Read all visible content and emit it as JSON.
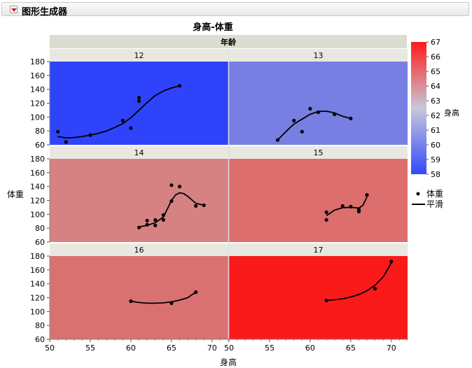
{
  "window": {
    "title": "图形生成器"
  },
  "chart_data": {
    "type": "scatter",
    "title": "身高-体重",
    "xlabel": "身高",
    "ylabel": "体重",
    "group_label": "年龄",
    "xlim": [
      50,
      72
    ],
    "ylim": [
      60,
      180
    ],
    "x_ticks": [
      50,
      55,
      60,
      65,
      70
    ],
    "y_ticks": [
      60,
      80,
      100,
      120,
      140,
      160,
      180
    ],
    "legend": {
      "marker": "体重",
      "line": "平滑"
    },
    "color_scale": {
      "label": "身高",
      "min": 58,
      "max": 67,
      "ticks": [
        58,
        59,
        60,
        61,
        62,
        63,
        64,
        65,
        66,
        67
      ],
      "low_color": "#3348ff",
      "mid_color": "#c8c8d8",
      "high_color": "#ff1a1a"
    },
    "panels": [
      {
        "age": "12",
        "bg": "#2f43fb",
        "points": [
          [
            51,
            79
          ],
          [
            52,
            64
          ],
          [
            55,
            74
          ],
          [
            59,
            95
          ],
          [
            60,
            84
          ],
          [
            61,
            123
          ],
          [
            61,
            128
          ],
          [
            66,
            145
          ]
        ],
        "smooth": [
          [
            51,
            72
          ],
          [
            52,
            70
          ],
          [
            53,
            70.5
          ],
          [
            54,
            72
          ],
          [
            55,
            74
          ],
          [
            56,
            76.5
          ],
          [
            57,
            80
          ],
          [
            58,
            85
          ],
          [
            59,
            90.5
          ],
          [
            60,
            99
          ],
          [
            61,
            110
          ],
          [
            62,
            121
          ],
          [
            63,
            131
          ],
          [
            64,
            137.5
          ],
          [
            65,
            142
          ],
          [
            66,
            145
          ]
        ]
      },
      {
        "age": "13",
        "bg": "#777fe2",
        "points": [
          [
            56,
            67
          ],
          [
            58,
            95
          ],
          [
            59,
            79
          ],
          [
            60,
            112
          ],
          [
            61,
            107
          ],
          [
            63,
            104
          ],
          [
            65,
            98
          ]
        ],
        "smooth": [
          [
            56,
            67
          ],
          [
            57,
            79
          ],
          [
            58,
            90
          ],
          [
            59,
            97
          ],
          [
            60,
            104
          ],
          [
            61,
            108
          ],
          [
            62,
            108.5
          ],
          [
            63,
            106
          ],
          [
            64,
            101
          ],
          [
            65,
            98
          ]
        ]
      },
      {
        "age": "14",
        "bg": "#d68282",
        "points": [
          [
            61,
            81
          ],
          [
            62,
            85
          ],
          [
            62,
            91
          ],
          [
            63,
            92
          ],
          [
            63,
            84
          ],
          [
            64,
            92
          ],
          [
            64,
            99
          ],
          [
            65,
            119
          ],
          [
            65,
            142
          ],
          [
            66,
            140
          ],
          [
            68,
            112
          ],
          [
            69,
            113
          ]
        ],
        "smooth": [
          [
            61,
            82
          ],
          [
            62,
            84
          ],
          [
            63,
            88
          ],
          [
            64,
            96
          ],
          [
            64.5,
            108
          ],
          [
            65,
            120
          ],
          [
            65.5,
            128
          ],
          [
            66,
            131
          ],
          [
            66.5,
            130
          ],
          [
            67,
            126
          ],
          [
            68,
            116
          ],
          [
            69,
            113
          ]
        ]
      },
      {
        "age": "15",
        "bg": "#dc6e6e",
        "points": [
          [
            62,
            103
          ],
          [
            62,
            92
          ],
          [
            64,
            112
          ],
          [
            65,
            111
          ],
          [
            66,
            104
          ],
          [
            66,
            107
          ],
          [
            67,
            128
          ]
        ],
        "smooth": [
          [
            62,
            98
          ],
          [
            63,
            106
          ],
          [
            64,
            109.5
          ],
          [
            65,
            110
          ],
          [
            66,
            109
          ],
          [
            66.5,
            113
          ],
          [
            67,
            125
          ]
        ]
      },
      {
        "age": "16",
        "bg": "#da7171",
        "points": [
          [
            60,
            115
          ],
          [
            65,
            112
          ],
          [
            68,
            128
          ]
        ],
        "smooth": [
          [
            60,
            115
          ],
          [
            61,
            113
          ],
          [
            62,
            112
          ],
          [
            63,
            112
          ],
          [
            64,
            112.5
          ],
          [
            65,
            114
          ],
          [
            66,
            116.5
          ],
          [
            67,
            120
          ],
          [
            68,
            128
          ]
        ]
      },
      {
        "age": "17",
        "bg": "#fa1a1a",
        "points": [
          [
            62,
            116
          ],
          [
            68,
            133
          ],
          [
            70,
            172
          ]
        ],
        "smooth": [
          [
            62,
            116
          ],
          [
            63,
            117
          ],
          [
            64,
            118.5
          ],
          [
            65,
            121
          ],
          [
            66,
            124.5
          ],
          [
            67,
            130
          ],
          [
            68,
            138
          ],
          [
            69,
            150
          ],
          [
            70,
            170
          ]
        ]
      }
    ]
  }
}
